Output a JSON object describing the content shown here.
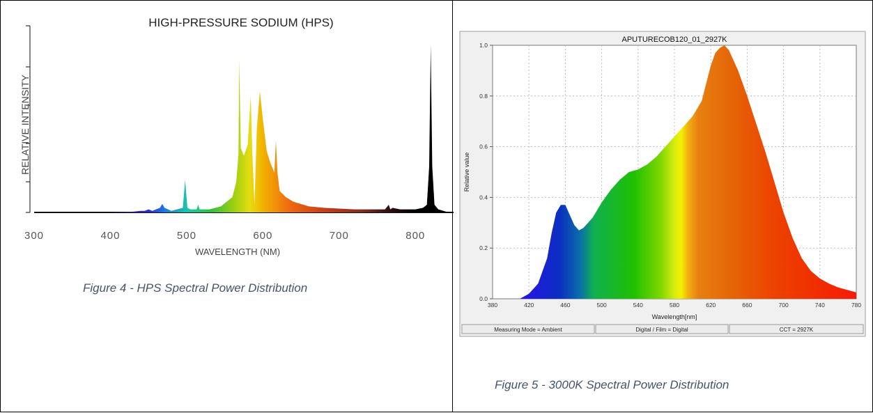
{
  "chart_data": [
    {
      "type": "area",
      "title": "HIGH-PRESSURE SODIUM (HPS)",
      "xlabel": "WAVELENGTH (NM)",
      "ylabel": "RELATIVE INTENSITY",
      "xlim": [
        300,
        850
      ],
      "xticks": [
        "300",
        "400",
        "500",
        "600",
        "700",
        "800"
      ],
      "grid": false,
      "legend": "none",
      "x": [
        400,
        430,
        440,
        445,
        450,
        455,
        460,
        465,
        468,
        471,
        480,
        495,
        498,
        501,
        505,
        513,
        515,
        517,
        530,
        545,
        550,
        555,
        560,
        565,
        568,
        569,
        571,
        575,
        580,
        584,
        586,
        589,
        592,
        596,
        600,
        605,
        610,
        615,
        617,
        619,
        622,
        630,
        640,
        660,
        680,
        700,
        720,
        740,
        760,
        765,
        767,
        770,
        780,
        800,
        810,
        815,
        818,
        820,
        822,
        825,
        830,
        840,
        850
      ],
      "y": [
        0.0,
        0.005,
        0.01,
        0.01,
        0.02,
        0.01,
        0.02,
        0.03,
        0.055,
        0.03,
        0.01,
        0.03,
        0.21,
        0.03,
        0.02,
        0.02,
        0.05,
        0.02,
        0.02,
        0.04,
        0.06,
        0.08,
        0.1,
        0.2,
        0.38,
        1.0,
        0.42,
        0.37,
        0.44,
        0.76,
        0.4,
        0.05,
        0.55,
        0.79,
        0.6,
        0.4,
        0.32,
        0.26,
        0.47,
        0.26,
        0.14,
        0.1,
        0.07,
        0.04,
        0.03,
        0.025,
        0.02,
        0.02,
        0.02,
        0.05,
        0.02,
        0.03,
        0.02,
        0.02,
        0.03,
        0.05,
        0.3,
        1.09,
        0.3,
        0.05,
        0.02,
        0.005,
        0.0
      ]
    },
    {
      "type": "area",
      "title": "APUTURECOB120_01_2927K",
      "xlabel": "Wavelength[nm]",
      "ylabel": "Relative value",
      "xlim": [
        380,
        780
      ],
      "ylim": [
        0,
        1
      ],
      "xticks": [
        "380",
        "420",
        "460",
        "500",
        "540",
        "580",
        "620",
        "660",
        "700",
        "740",
        "780"
      ],
      "yticks": [
        "0.0",
        "0.2",
        "0.4",
        "0.6",
        "0.8",
        "1.0"
      ],
      "grid": true,
      "legend": "none",
      "x": [
        410,
        420,
        430,
        440,
        445,
        450,
        455,
        460,
        465,
        470,
        475,
        480,
        490,
        500,
        510,
        520,
        530,
        540,
        550,
        560,
        570,
        580,
        590,
        600,
        610,
        620,
        625,
        630,
        635,
        640,
        650,
        660,
        670,
        680,
        690,
        700,
        710,
        720,
        730,
        740,
        750,
        760,
        770,
        780
      ],
      "y": [
        0.0,
        0.02,
        0.06,
        0.16,
        0.26,
        0.34,
        0.37,
        0.37,
        0.33,
        0.29,
        0.27,
        0.28,
        0.32,
        0.38,
        0.43,
        0.47,
        0.5,
        0.51,
        0.53,
        0.56,
        0.6,
        0.64,
        0.68,
        0.72,
        0.78,
        0.92,
        0.97,
        0.99,
        1.0,
        0.98,
        0.9,
        0.8,
        0.69,
        0.58,
        0.46,
        0.34,
        0.24,
        0.16,
        0.11,
        0.08,
        0.06,
        0.045,
        0.035,
        0.025
      ]
    }
  ],
  "footer": {
    "mode": "Measuring Mode = Ambient",
    "film": "Digital / Film = Digital",
    "cct": "CCT = 2927K"
  },
  "captions": {
    "left": "Figure 4 - HPS Spectral Power Distribution",
    "right": "Figure 5 - 3000K Spectral Power Distribution"
  }
}
